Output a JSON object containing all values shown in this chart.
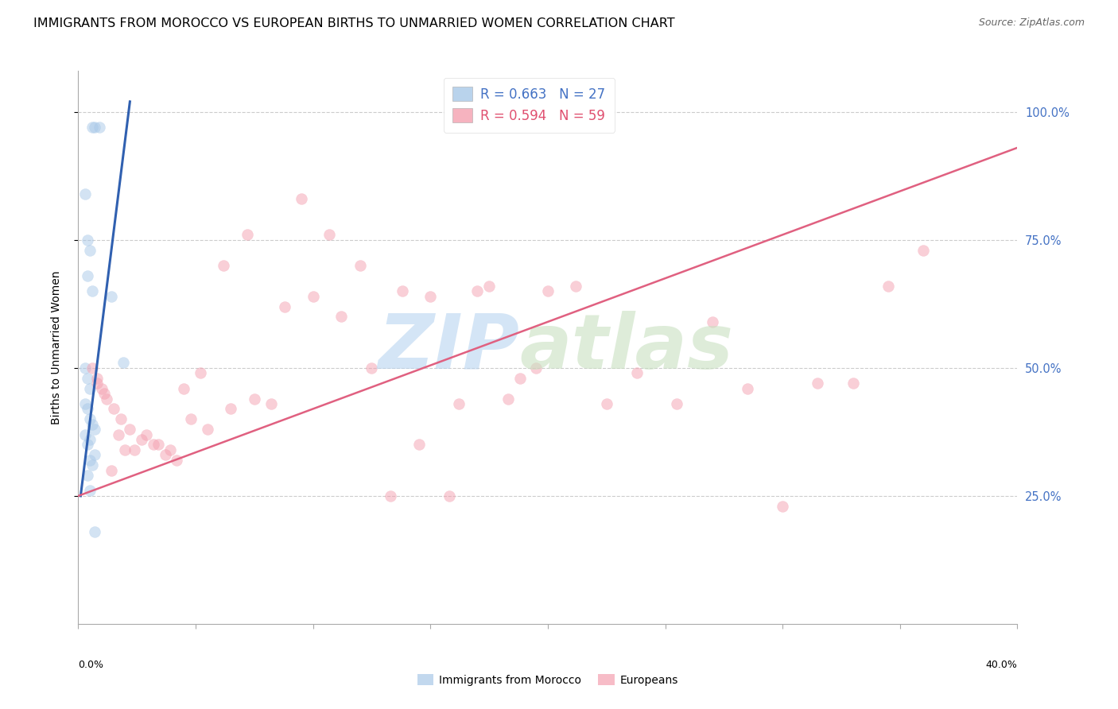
{
  "title": "IMMIGRANTS FROM MOROCCO VS EUROPEAN BIRTHS TO UNMARRIED WOMEN CORRELATION CHART",
  "source": "Source: ZipAtlas.com",
  "ylabel": "Births to Unmarried Women",
  "xlim": [
    0.0,
    0.4
  ],
  "ylim": [
    0.0,
    1.08
  ],
  "legend_blue_r": "R = 0.663",
  "legend_blue_n": "N = 27",
  "legend_pink_r": "R = 0.594",
  "legend_pink_n": "N = 59",
  "blue_color": "#a8c8e8",
  "pink_color": "#f4a0b0",
  "blue_line_color": "#3060b0",
  "pink_line_color": "#e06080",
  "blue_scatter_x": [
    0.006,
    0.007,
    0.009,
    0.003,
    0.004,
    0.005,
    0.004,
    0.006,
    0.003,
    0.004,
    0.005,
    0.003,
    0.004,
    0.005,
    0.006,
    0.007,
    0.003,
    0.019,
    0.014,
    0.005,
    0.004,
    0.007,
    0.005,
    0.006,
    0.004,
    0.005,
    0.007
  ],
  "blue_scatter_y": [
    0.97,
    0.97,
    0.97,
    0.84,
    0.75,
    0.73,
    0.68,
    0.65,
    0.5,
    0.48,
    0.46,
    0.43,
    0.42,
    0.4,
    0.39,
    0.38,
    0.37,
    0.51,
    0.64,
    0.36,
    0.35,
    0.33,
    0.32,
    0.31,
    0.29,
    0.26,
    0.18
  ],
  "pink_scatter_x": [
    0.006,
    0.008,
    0.01,
    0.012,
    0.015,
    0.018,
    0.022,
    0.027,
    0.032,
    0.037,
    0.042,
    0.048,
    0.055,
    0.065,
    0.075,
    0.088,
    0.1,
    0.112,
    0.125,
    0.138,
    0.15,
    0.162,
    0.175,
    0.188,
    0.2,
    0.212,
    0.225,
    0.238,
    0.255,
    0.27,
    0.285,
    0.3,
    0.315,
    0.33,
    0.345,
    0.36,
    0.008,
    0.011,
    0.014,
    0.017,
    0.02,
    0.024,
    0.029,
    0.034,
    0.039,
    0.045,
    0.052,
    0.062,
    0.072,
    0.082,
    0.095,
    0.107,
    0.12,
    0.133,
    0.145,
    0.158,
    0.17,
    0.183,
    0.195
  ],
  "pink_scatter_y": [
    0.5,
    0.48,
    0.46,
    0.44,
    0.42,
    0.4,
    0.38,
    0.36,
    0.35,
    0.33,
    0.32,
    0.4,
    0.38,
    0.42,
    0.44,
    0.62,
    0.64,
    0.6,
    0.5,
    0.65,
    0.64,
    0.43,
    0.66,
    0.48,
    0.65,
    0.66,
    0.43,
    0.49,
    0.43,
    0.59,
    0.46,
    0.23,
    0.47,
    0.47,
    0.66,
    0.73,
    0.47,
    0.45,
    0.3,
    0.37,
    0.34,
    0.34,
    0.37,
    0.35,
    0.34,
    0.46,
    0.49,
    0.7,
    0.76,
    0.43,
    0.83,
    0.76,
    0.7,
    0.25,
    0.35,
    0.25,
    0.65,
    0.44,
    0.5
  ],
  "blue_line_x": [
    0.001,
    0.022
  ],
  "blue_line_y": [
    0.25,
    1.02
  ],
  "pink_line_x": [
    0.0,
    0.4
  ],
  "pink_line_y": [
    0.25,
    0.93
  ],
  "grid_color": "#cccccc",
  "background_color": "#ffffff",
  "title_fontsize": 11.5,
  "source_fontsize": 9,
  "legend_fontsize": 12,
  "ylabel_fontsize": 10,
  "ytick_fontsize": 10.5,
  "scatter_size": 100,
  "scatter_alpha": 0.5,
  "scatter_lw": 0.3
}
